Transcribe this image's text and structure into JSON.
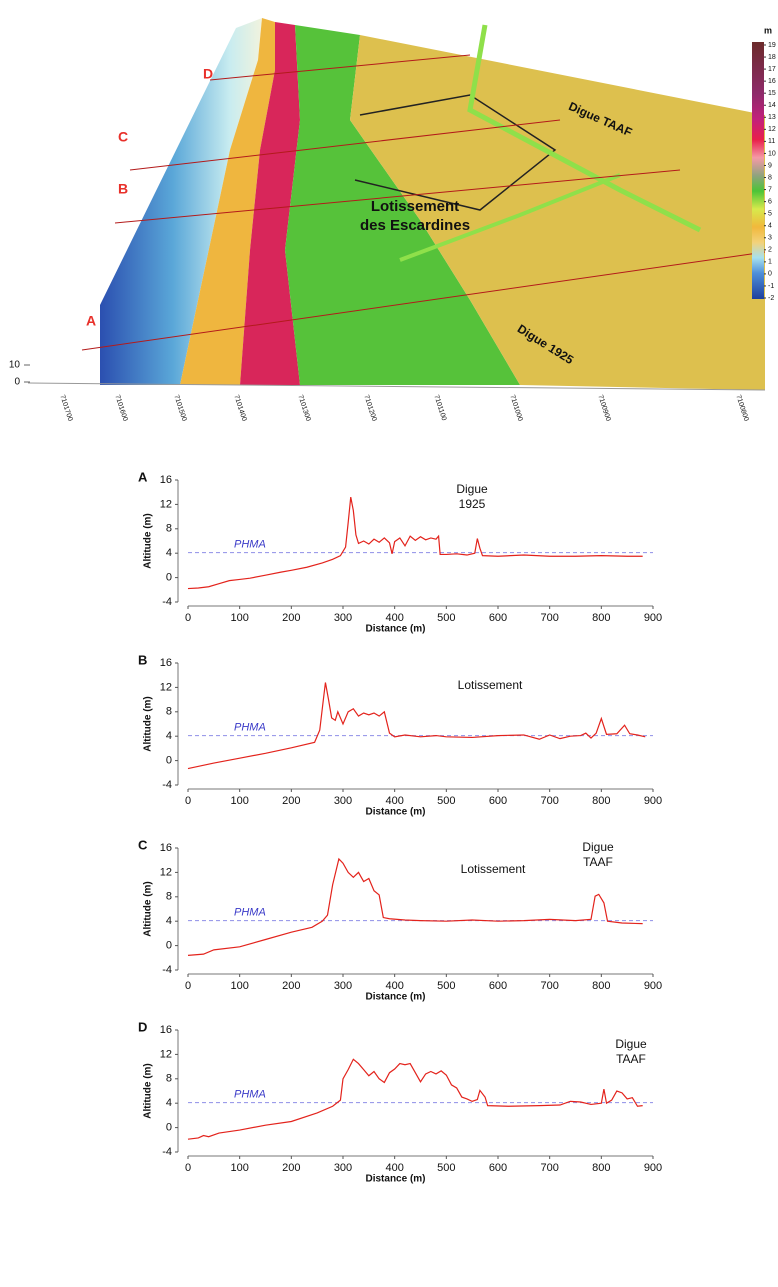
{
  "map": {
    "profile_labels": [
      "D",
      "C",
      "B",
      "A"
    ],
    "area_label": [
      "Lotissement",
      "des Escardines"
    ],
    "dike_labels": [
      "Digue TAAF",
      "Digue 1925"
    ],
    "vertical_ticks": [
      0,
      10
    ],
    "colorbar": {
      "unit": "m",
      "ticks": [
        -2,
        -1,
        0,
        1,
        2,
        3,
        4,
        5,
        6,
        7,
        8,
        9,
        10,
        11,
        12,
        13,
        14,
        15,
        16,
        17,
        18,
        19
      ]
    },
    "northing_labels": [
      "7101700",
      "7101600",
      "7101500",
      "7101400",
      "7101300",
      "7101200",
      "7101100",
      "7101000",
      "7100900",
      "7100800"
    ]
  },
  "chart_data": [
    {
      "type": "line",
      "panel_label": "A",
      "y_label": "Altitude (m)",
      "x_label": "Distance (m)",
      "color": "#e3231c",
      "xlim": [
        0,
        900
      ],
      "ylim": [
        -4,
        16
      ],
      "xticks": [
        0,
        100,
        200,
        300,
        400,
        500,
        600,
        700,
        800,
        900
      ],
      "yticks": [
        -4,
        0,
        4,
        8,
        12,
        16
      ],
      "reference_line": {
        "label": "PHMA",
        "value": 4.1,
        "color": "#8f8fe8"
      },
      "annotations": [
        [
          "Digue",
          "1925"
        ]
      ],
      "x": [
        0,
        20,
        40,
        60,
        80,
        100,
        120,
        150,
        180,
        200,
        230,
        260,
        280,
        295,
        305,
        310,
        315,
        320,
        325,
        330,
        340,
        350,
        360,
        370,
        380,
        390,
        395,
        400,
        410,
        420,
        430,
        440,
        450,
        460,
        470,
        480,
        485,
        488,
        500,
        520,
        540,
        555,
        560,
        565,
        570,
        600,
        650,
        700,
        750,
        800,
        850,
        880
      ],
      "values": [
        -1.8,
        -1.7,
        -1.5,
        -1,
        -0.5,
        -0.3,
        -0.1,
        0.4,
        0.9,
        1.2,
        1.7,
        2.4,
        3,
        3.6,
        5,
        9,
        13.2,
        11,
        7,
        5.6,
        6,
        5.5,
        6.3,
        5.8,
        6.5,
        5.7,
        3.9,
        5.9,
        6.5,
        5.2,
        6.8,
        6.1,
        6.7,
        6.2,
        6.5,
        6.3,
        6.8,
        3.8,
        3.8,
        3.9,
        3.7,
        4,
        6.4,
        4.8,
        3.6,
        3.5,
        3.7,
        3.5,
        3.5,
        3.6,
        3.5,
        3.5
      ]
    },
    {
      "type": "line",
      "panel_label": "B",
      "y_label": "Altitude (m)",
      "x_label": "Distance (m)",
      "color": "#e3231c",
      "xlim": [
        0,
        900
      ],
      "ylim": [
        -4,
        16
      ],
      "xticks": [
        0,
        100,
        200,
        300,
        400,
        500,
        600,
        700,
        800,
        900
      ],
      "yticks": [
        -4,
        0,
        4,
        8,
        12,
        16
      ],
      "reference_line": {
        "label": "PHMA",
        "value": 4.1,
        "color": "#8f8fe8"
      },
      "annotations": [
        [
          "Lotissement"
        ]
      ],
      "x": [
        0,
        50,
        100,
        150,
        200,
        245,
        255,
        262,
        266,
        272,
        278,
        285,
        290,
        300,
        310,
        320,
        330,
        340,
        350,
        360,
        370,
        380,
        390,
        400,
        420,
        450,
        480,
        500,
        550,
        600,
        650,
        680,
        700,
        720,
        740,
        760,
        770,
        780,
        790,
        800,
        810,
        830,
        845,
        855,
        870,
        885
      ],
      "values": [
        -1.3,
        -0.4,
        0.4,
        1.2,
        2.1,
        3,
        5,
        10,
        12.8,
        10,
        7,
        6.6,
        8,
        6,
        8,
        8.5,
        7.3,
        7.8,
        7.5,
        7.8,
        7.3,
        8,
        4.5,
        3.9,
        4.2,
        3.9,
        4.1,
        3.9,
        3.8,
        4.1,
        4.2,
        3.5,
        4.2,
        3.6,
        4,
        4.1,
        4.5,
        3.7,
        4.5,
        6.9,
        4.3,
        4.4,
        5.8,
        4.4,
        4.2,
        3.9
      ]
    },
    {
      "type": "line",
      "panel_label": "C",
      "y_label": "Altitude (m)",
      "x_label": "Distance (m)",
      "color": "#e3231c",
      "xlim": [
        0,
        900
      ],
      "ylim": [
        -4,
        16
      ],
      "xticks": [
        0,
        100,
        200,
        300,
        400,
        500,
        600,
        700,
        800,
        900
      ],
      "yticks": [
        -4,
        0,
        4,
        8,
        12,
        16
      ],
      "reference_line": {
        "label": "PHMA",
        "value": 4.1,
        "color": "#8f8fe8"
      },
      "annotations": [
        [
          "Lotissement"
        ],
        [
          "Digue",
          "TAAF"
        ]
      ],
      "x": [
        0,
        30,
        50,
        100,
        150,
        200,
        240,
        260,
        270,
        280,
        292,
        300,
        310,
        320,
        330,
        340,
        350,
        360,
        370,
        378,
        390,
        420,
        450,
        500,
        550,
        600,
        650,
        700,
        750,
        780,
        788,
        795,
        805,
        812,
        840,
        880
      ],
      "values": [
        -1.6,
        -1.4,
        -0.7,
        -0.2,
        1,
        2.2,
        3,
        4,
        5,
        10,
        14.2,
        13.5,
        12,
        11.2,
        12,
        10.5,
        11,
        9,
        8.3,
        4.6,
        4.4,
        4.2,
        4.1,
        4,
        4.2,
        4,
        4.1,
        4.3,
        4.1,
        4.3,
        8.1,
        8.4,
        7,
        4,
        3.7,
        3.6
      ]
    },
    {
      "type": "line",
      "panel_label": "D",
      "y_label": "Altitude (m)",
      "x_label": "Distance (m)",
      "color": "#e3231c",
      "xlim": [
        0,
        900
      ],
      "ylim": [
        -4,
        16
      ],
      "xticks": [
        0,
        100,
        200,
        300,
        400,
        500,
        600,
        700,
        800,
        900
      ],
      "yticks": [
        -4,
        0,
        4,
        8,
        12,
        16
      ],
      "reference_line": {
        "label": "PHMA",
        "value": 4.1,
        "color": "#8f8fe8"
      },
      "annotations": [
        [
          "Digue",
          "TAAF"
        ]
      ],
      "x": [
        0,
        20,
        30,
        40,
        60,
        100,
        150,
        200,
        250,
        280,
        295,
        300,
        310,
        320,
        330,
        340,
        350,
        360,
        370,
        380,
        390,
        400,
        410,
        420,
        430,
        440,
        450,
        460,
        470,
        480,
        490,
        500,
        510,
        520,
        530,
        540,
        550,
        560,
        565,
        575,
        580,
        620,
        680,
        720,
        740,
        760,
        780,
        800,
        805,
        810,
        820,
        830,
        840,
        850,
        860,
        870,
        880
      ],
      "values": [
        -1.9,
        -1.7,
        -1.3,
        -1.5,
        -0.9,
        -0.4,
        0.4,
        1,
        2.4,
        3.5,
        4.5,
        8,
        9.5,
        11.2,
        10.5,
        9.5,
        8.5,
        9.2,
        8,
        7.4,
        9,
        9.6,
        10.5,
        10.3,
        10.5,
        9,
        7.5,
        8.8,
        9.2,
        8.8,
        9.3,
        8.6,
        7,
        6.5,
        5,
        4.7,
        4.3,
        4.6,
        6.1,
        5,
        3.6,
        3.5,
        3.6,
        3.7,
        4.3,
        4.2,
        3.8,
        4,
        6.3,
        4,
        4.5,
        6,
        5.7,
        4.7,
        4.9,
        3.5,
        3.6
      ]
    }
  ]
}
